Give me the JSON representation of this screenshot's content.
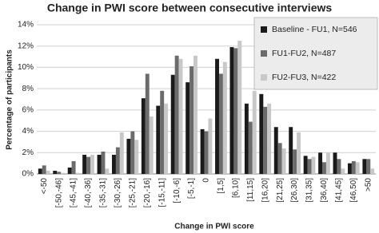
{
  "chart_data": {
    "type": "bar",
    "title": "Change in PWI score between consecutive interviews",
    "x_label": "Change in PWI score",
    "y_label": "Percentage of participants",
    "categories": [
      "<-50",
      "[-50,-46]",
      "[-45,-41]",
      "[-40,-36]",
      "[-35,-31]",
      "[-30,-26]",
      "[-25,-21]",
      "[-20,-16]",
      "[-15,-11]",
      "[-10,-6]",
      "[-5,-1]",
      "0",
      "[1,5]",
      "[6,10]",
      "[11,15]",
      "[16,20]",
      "[21,25]",
      "[26,30]",
      "[31,35]",
      "[36,40]",
      "[41,45]",
      "[46,50]",
      ">50"
    ],
    "series": [
      {
        "name": "Baseline - FU1, N=546",
        "color": "#1a1a1a",
        "values": [
          0.5,
          0.3,
          0.6,
          1.8,
          1.8,
          1.8,
          3.3,
          7.1,
          6.4,
          9.3,
          8.6,
          4.2,
          10.8,
          11.9,
          6.6,
          7.5,
          4.4,
          4.4,
          1.7,
          2.0,
          2.0,
          1.0,
          1.4
        ]
      },
      {
        "name": "FU1-FU2, N=487",
        "color": "#6b6b6b",
        "values": [
          0.8,
          0.2,
          1.2,
          1.6,
          2.1,
          2.5,
          4.0,
          9.4,
          7.8,
          11.1,
          10.1,
          4.0,
          9.4,
          11.8,
          4.9,
          6.3,
          2.9,
          2.3,
          1.4,
          1.1,
          1.4,
          1.2,
          1.4
        ]
      },
      {
        "name": "FU2-FU3, N=422",
        "color": "#c8c8c8",
        "values": [
          0.3,
          0.1,
          0.1,
          1.8,
          0.5,
          3.9,
          3.2,
          5.4,
          6.6,
          10.8,
          11.1,
          5.2,
          10.5,
          12.5,
          7.8,
          6.6,
          2.4,
          3.9,
          1.6,
          2.0,
          0.5,
          1.1,
          0.5
        ]
      }
    ],
    "ylim": [
      0,
      14
    ],
    "yticks": [
      {
        "value": 0,
        "label": "0%"
      },
      {
        "value": 2,
        "label": "2%"
      },
      {
        "value": 4,
        "label": "4%"
      },
      {
        "value": 6,
        "label": "6%"
      },
      {
        "value": 8,
        "label": "8%"
      },
      {
        "value": 10,
        "label": "10%"
      },
      {
        "value": 12,
        "label": "12%"
      },
      {
        "value": 14,
        "label": "14%"
      }
    ],
    "grid": true,
    "legend": "top-right"
  }
}
